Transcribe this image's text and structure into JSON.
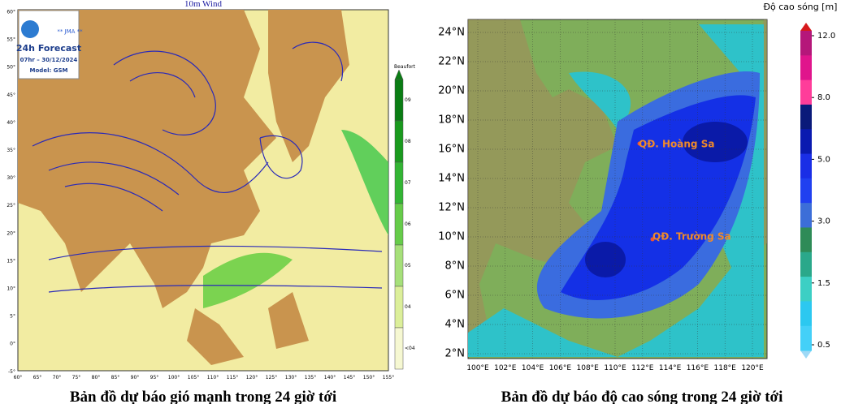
{
  "wind_map": {
    "title": "10m Wind",
    "logo": {
      "agency": "** JMA **",
      "heading": "24h Forecast",
      "time": "07hr – 30/12/2024",
      "model": "Model: GSM"
    },
    "lat_labels": [
      "60°",
      "55°",
      "50°",
      "45°",
      "40°",
      "35°",
      "30°",
      "25°",
      "20°",
      "15°",
      "10°",
      "5°",
      "0°",
      "-5°"
    ],
    "lon_labels": [
      "60°",
      "65°",
      "70°",
      "75°",
      "80°",
      "85°",
      "90°",
      "95°",
      "100°",
      "105°",
      "110°",
      "115°",
      "120°",
      "125°",
      "130°",
      "135°",
      "140°",
      "145°",
      "150°",
      "155°"
    ],
    "colorbar": {
      "title": "Beaufort",
      "labels": [
        "09",
        "08",
        "07",
        "06",
        "05",
        "04",
        "<04"
      ]
    },
    "caption": "Bản đồ dự báo gió mạnh trong 24 giờ tới"
  },
  "wave_map": {
    "colorbar": {
      "title": "Độ cao sóng [m]",
      "labels": [
        "12.0",
        "8.0",
        "5.0",
        "3.0",
        "1.5",
        "0.5"
      ]
    },
    "lat_labels": [
      "24°N",
      "22°N",
      "20°N",
      "18°N",
      "16°N",
      "14°N",
      "12°N",
      "10°N",
      "8°N",
      "6°N",
      "4°N",
      "2°N"
    ],
    "lon_labels": [
      "100°E",
      "102°E",
      "104°E",
      "106°E",
      "108°E",
      "110°E",
      "112°E",
      "114°E",
      "116°E",
      "118°E",
      "120°E"
    ],
    "places": [
      "QĐ. Hoàng Sa",
      "QĐ. Trường Sa"
    ],
    "caption": "Bản đồ dự báo độ cao sóng trong 24 giờ tới"
  }
}
